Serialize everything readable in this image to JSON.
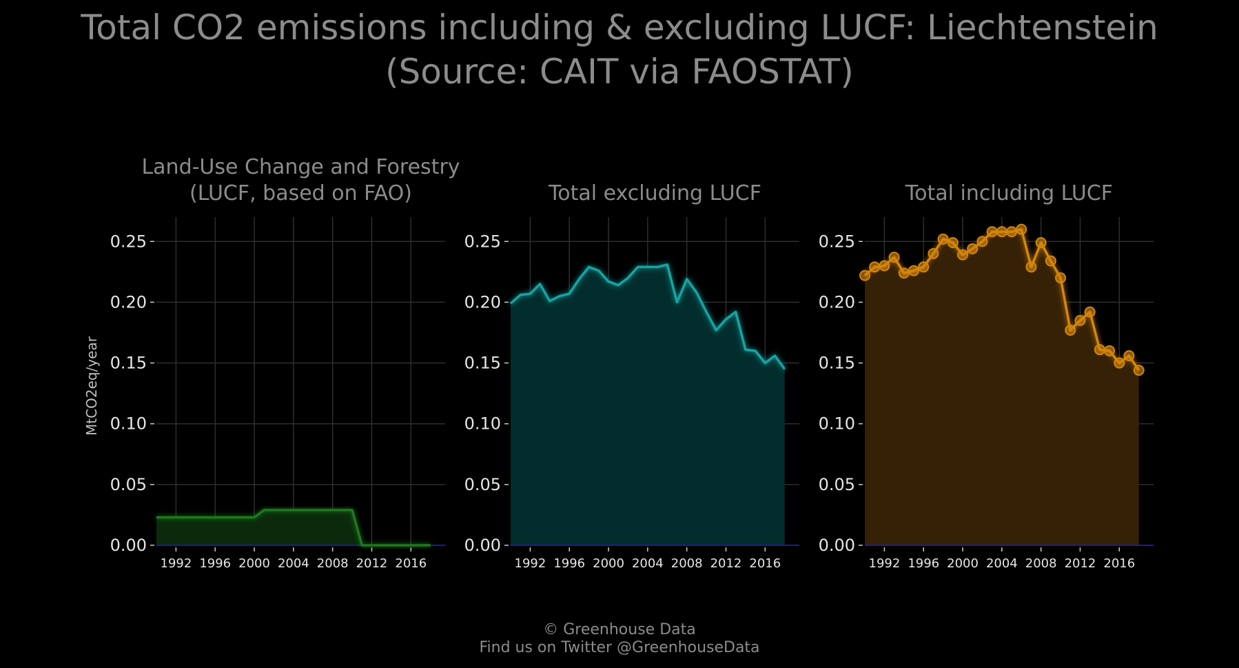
{
  "title_line1": "Total CO2 emissions including & excluding LUCF: Liechtenstein",
  "title_line2": "(Source: CAIT via FAOSTAT)",
  "credit_line1": "© Greenhouse Data",
  "credit_line2": "Find us on Twitter @GreenhouseData",
  "colors": {
    "background": "#000000",
    "grid": "#2e2e2e",
    "zero_line": "#1a1aa8"
  },
  "chart_data": [
    {
      "type": "area",
      "title_lines": [
        "Land-Use Change and Forestry",
        "(LUCF, based on FAO)"
      ],
      "ylabel": "MtCO2eq/year",
      "color": "#1f7a1f",
      "fill": "#0b2a0b",
      "markers": false,
      "x": [
        1990,
        1991,
        1992,
        1993,
        1994,
        1995,
        1996,
        1997,
        1998,
        1999,
        2000,
        2001,
        2002,
        2003,
        2004,
        2005,
        2006,
        2007,
        2008,
        2009,
        2010,
        2011,
        2012,
        2013,
        2014,
        2015,
        2016,
        2017,
        2018
      ],
      "y": [
        0.023,
        0.023,
        0.023,
        0.023,
        0.023,
        0.023,
        0.023,
        0.023,
        0.023,
        0.023,
        0.023,
        0.029,
        0.029,
        0.029,
        0.029,
        0.029,
        0.029,
        0.029,
        0.029,
        0.029,
        0.029,
        0.0,
        0.0,
        0.0,
        0.0,
        0.0,
        0.0,
        0.0,
        0.0
      ],
      "ylim": [
        0,
        0.27
      ],
      "xlim": [
        1990,
        2019.5
      ],
      "yticks": [
        "0.00",
        "0.05",
        "0.10",
        "0.15",
        "0.20",
        "0.25"
      ],
      "xticks": [
        "1992",
        "1996",
        "2000",
        "2004",
        "2008",
        "2012",
        "2016"
      ],
      "grid": true
    },
    {
      "type": "area",
      "title_lines": [
        "Total excluding LUCF"
      ],
      "color": "#17a3a3",
      "fill": "#032d2d",
      "markers": false,
      "x": [
        1990,
        1991,
        1992,
        1993,
        1994,
        1995,
        1996,
        1997,
        1998,
        1999,
        2000,
        2001,
        2002,
        2003,
        2004,
        2005,
        2006,
        2007,
        2008,
        2009,
        2010,
        2011,
        2012,
        2013,
        2014,
        2015,
        2016,
        2017,
        2018
      ],
      "y": [
        0.199,
        0.206,
        0.207,
        0.215,
        0.201,
        0.205,
        0.207,
        0.219,
        0.229,
        0.226,
        0.217,
        0.214,
        0.22,
        0.229,
        0.229,
        0.229,
        0.231,
        0.2,
        0.219,
        0.208,
        0.192,
        0.177,
        0.186,
        0.192,
        0.161,
        0.16,
        0.15,
        0.156,
        0.145
      ],
      "ylim": [
        0,
        0.27
      ],
      "xlim": [
        1990,
        2019.5
      ],
      "yticks": [
        "0.00",
        "0.05",
        "0.10",
        "0.15",
        "0.20",
        "0.25"
      ],
      "xticks": [
        "1992",
        "1996",
        "2000",
        "2004",
        "2008",
        "2012",
        "2016"
      ],
      "grid": true
    },
    {
      "type": "area",
      "title_lines": [
        "Total including LUCF"
      ],
      "color": "#d4860b",
      "fill": "#352105",
      "markers": true,
      "x": [
        1990,
        1991,
        1992,
        1993,
        1994,
        1995,
        1996,
        1997,
        1998,
        1999,
        2000,
        2001,
        2002,
        2003,
        2004,
        2005,
        2006,
        2007,
        2008,
        2009,
        2010,
        2011,
        2012,
        2013,
        2014,
        2015,
        2016,
        2017,
        2018
      ],
      "y": [
        0.222,
        0.229,
        0.23,
        0.237,
        0.224,
        0.226,
        0.229,
        0.24,
        0.252,
        0.249,
        0.239,
        0.244,
        0.25,
        0.258,
        0.258,
        0.258,
        0.26,
        0.229,
        0.249,
        0.234,
        0.22,
        0.177,
        0.185,
        0.192,
        0.161,
        0.16,
        0.15,
        0.156,
        0.144
      ],
      "ylim": [
        0,
        0.27
      ],
      "xlim": [
        1990,
        2019.5
      ],
      "yticks": [
        "0.00",
        "0.05",
        "0.10",
        "0.15",
        "0.20",
        "0.25"
      ],
      "xticks": [
        "1992",
        "1996",
        "2000",
        "2004",
        "2008",
        "2012",
        "2016"
      ],
      "grid": true
    }
  ]
}
